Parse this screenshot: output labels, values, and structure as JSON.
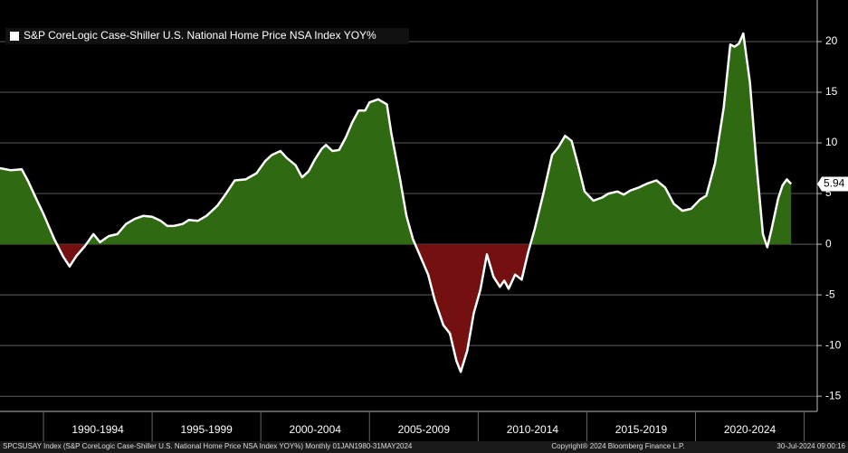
{
  "chart_data": {
    "type": "area",
    "legend": "S&P CoreLogic Case-Shiller U.S. National Home Price NSA Index YOY%",
    "x": [
      1988.0,
      1988.5,
      1989.0,
      1989.3,
      1989.6,
      1990.0,
      1990.5,
      1990.9,
      1991.2,
      1991.5,
      1991.9,
      1992.3,
      1992.6,
      1993.0,
      1993.4,
      1993.8,
      1994.2,
      1994.6,
      1995.0,
      1995.4,
      1995.7,
      1996.0,
      1996.4,
      1996.7,
      1997.1,
      1997.5,
      1998.0,
      1998.4,
      1998.8,
      1999.3,
      1999.8,
      2000.2,
      2000.5,
      2000.9,
      2001.2,
      2001.6,
      2001.9,
      2002.2,
      2002.5,
      2002.8,
      2003.0,
      2003.3,
      2003.6,
      2003.9,
      2004.2,
      2004.5,
      2004.8,
      2005.0,
      2005.4,
      2005.8,
      2006.0,
      2006.4,
      2006.7,
      2007.0,
      2007.4,
      2007.7,
      2008.0,
      2008.4,
      2008.7,
      2009.0,
      2009.2,
      2009.5,
      2009.8,
      2010.1,
      2010.4,
      2010.7,
      2011.0,
      2011.2,
      2011.4,
      2011.7,
      2012.0,
      2012.3,
      2012.6,
      2013.0,
      2013.4,
      2013.7,
      2014.0,
      2014.3,
      2014.6,
      2014.9,
      2015.3,
      2015.7,
      2016.0,
      2016.4,
      2016.7,
      2017.0,
      2017.4,
      2017.8,
      2018.2,
      2018.6,
      2019.0,
      2019.4,
      2019.8,
      2020.2,
      2020.5,
      2020.9,
      2021.3,
      2021.6,
      2021.8,
      2022.0,
      2022.2,
      2022.5,
      2022.8,
      2023.1,
      2023.3,
      2023.5,
      2023.8,
      2024.0,
      2024.2,
      2024.4
    ],
    "series": [
      {
        "name": "S&P CoreLogic Case-Shiller U.S. National Home Price NSA Index YOY%",
        "color": "#ffffff",
        "positive_color": "#2f6a12",
        "negative_color": "#741010",
        "values": [
          7.5,
          7.3,
          7.4,
          6.2,
          4.8,
          3.0,
          0.5,
          -1.2,
          -2.2,
          -1.2,
          -0.2,
          1.0,
          0.2,
          0.8,
          1.0,
          2.0,
          2.5,
          2.8,
          2.7,
          2.3,
          1.8,
          1.8,
          2.0,
          2.4,
          2.3,
          2.8,
          3.8,
          5.0,
          6.3,
          6.4,
          7.0,
          8.2,
          8.8,
          9.2,
          8.5,
          7.8,
          6.6,
          7.2,
          8.4,
          9.4,
          9.8,
          9.2,
          9.3,
          10.5,
          12.0,
          13.2,
          13.2,
          14.0,
          14.3,
          13.8,
          11.0,
          6.5,
          2.8,
          0.5,
          -1.5,
          -3.0,
          -5.5,
          -8.0,
          -8.8,
          -11.5,
          -12.6,
          -10.5,
          -6.8,
          -4.5,
          -1.0,
          -3.2,
          -4.2,
          -3.6,
          -4.4,
          -3.0,
          -3.5,
          -0.8,
          1.5,
          5.0,
          8.8,
          9.6,
          10.7,
          10.2,
          7.8,
          5.2,
          4.3,
          4.6,
          5.0,
          5.2,
          4.9,
          5.3,
          5.6,
          6.0,
          6.3,
          5.6,
          4.0,
          3.3,
          3.5,
          4.4,
          4.8,
          8.0,
          13.5,
          19.7,
          19.5,
          19.8,
          20.8,
          16.0,
          8.0,
          1.0,
          -0.3,
          1.5,
          4.5,
          5.8,
          6.4,
          5.94
        ]
      }
    ],
    "last_value_label": "5.94",
    "xlim": [
      1988.0,
      2025.6
    ],
    "ylim": [
      -16.5,
      24.1
    ],
    "yticks": [
      20,
      15,
      10,
      5,
      0,
      -5,
      -10,
      -15
    ],
    "grid": true,
    "periods": [
      {
        "label": "1990-1994",
        "start": 1990,
        "end": 1995
      },
      {
        "label": "1995-1999",
        "start": 1995,
        "end": 2000
      },
      {
        "label": "2000-2004",
        "start": 2000,
        "end": 2005
      },
      {
        "label": "2005-2009",
        "start": 2005,
        "end": 2010
      },
      {
        "label": "2010-2014",
        "start": 2010,
        "end": 2015
      },
      {
        "label": "2015-2019",
        "start": 2015,
        "end": 2020
      },
      {
        "label": "2020-2024",
        "start": 2020,
        "end": 2025
      }
    ],
    "footer_left": "SPCSUSAY Index (S&P CoreLogic Case-Shiller U.S. National Home Price NSA Index YOY%) Monthly 01JAN1980-31MAY2024",
    "footer_center": "Copyright® 2024 Bloomberg Finance L.P.",
    "footer_right": "30-Jul-2024 09:00:16"
  }
}
